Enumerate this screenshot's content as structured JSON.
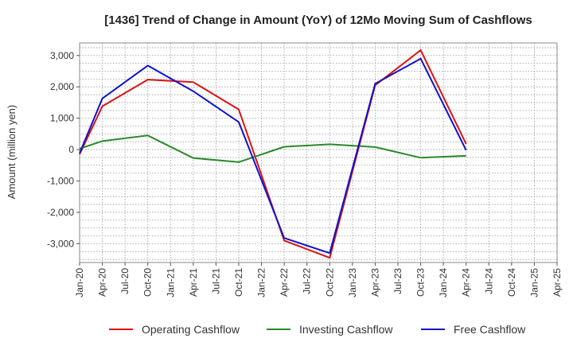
{
  "chart_data": {
    "type": "line",
    "title": "[1436]  Trend of Change in Amount (YoY) of 12Mo Moving Sum of Cashflows",
    "xlabel": "",
    "ylabel": "Amount (million yen)",
    "ylim": [
      -3600,
      3400
    ],
    "yticks": [
      3000,
      2000,
      1000,
      0,
      -1000,
      -2000,
      -3000
    ],
    "ytick_labels": [
      "3,000",
      "2,000",
      "1,000",
      "0",
      "-1,000",
      "-2,000",
      "-3,000"
    ],
    "categories": [
      "Jan-20",
      "Apr-20",
      "Jul-20",
      "Oct-20",
      "Jan-21",
      "Apr-21",
      "Jul-21",
      "Oct-21",
      "Jan-22",
      "Apr-22",
      "Jul-22",
      "Oct-22",
      "Jan-23",
      "Apr-23",
      "Jul-23",
      "Oct-23",
      "Jan-24",
      "Apr-24",
      "Jul-24",
      "Oct-24",
      "Jan-25",
      "Apr-25"
    ],
    "grid": true,
    "legend_position": "bottom",
    "series": [
      {
        "name": "Operating Cashflow",
        "color": "#dd1111",
        "values": [
          -150,
          1380,
          null,
          2230,
          null,
          2150,
          null,
          1280,
          null,
          -2900,
          null,
          -3450,
          null,
          2050,
          null,
          3170,
          null,
          180,
          null,
          null,
          null,
          null
        ]
      },
      {
        "name": "Investing Cashflow",
        "color": "#2a8a2a",
        "values": [
          30,
          270,
          null,
          450,
          null,
          -270,
          null,
          -400,
          null,
          90,
          null,
          170,
          null,
          80,
          null,
          -260,
          null,
          -200,
          null,
          null,
          null,
          null
        ]
      },
      {
        "name": "Free Cashflow",
        "color": "#1111cc",
        "values": [
          -120,
          1630,
          null,
          2680,
          null,
          1860,
          null,
          880,
          null,
          -2820,
          null,
          -3300,
          null,
          2100,
          null,
          2900,
          null,
          -20,
          null,
          null,
          null,
          null
        ]
      }
    ]
  }
}
